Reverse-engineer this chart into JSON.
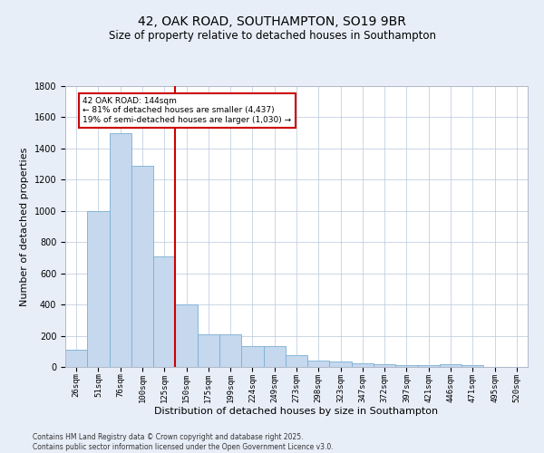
{
  "title_line1": "42, OAK ROAD, SOUTHAMPTON, SO19 9BR",
  "title_line2": "Size of property relative to detached houses in Southampton",
  "xlabel": "Distribution of detached houses by size in Southampton",
  "ylabel": "Number of detached properties",
  "categories": [
    "26sqm",
    "51sqm",
    "76sqm",
    "100sqm",
    "125sqm",
    "150sqm",
    "175sqm",
    "199sqm",
    "224sqm",
    "249sqm",
    "273sqm",
    "298sqm",
    "323sqm",
    "347sqm",
    "372sqm",
    "397sqm",
    "421sqm",
    "446sqm",
    "471sqm",
    "495sqm",
    "520sqm"
  ],
  "values": [
    110,
    1000,
    1500,
    1290,
    710,
    400,
    210,
    210,
    135,
    135,
    75,
    40,
    35,
    25,
    15,
    10,
    10,
    15,
    10,
    0,
    0
  ],
  "bar_color": "#c5d8ee",
  "bar_edge_color": "#7aafd4",
  "vline_x": 4.5,
  "vline_color": "#cc0000",
  "annotation_text": "42 OAK ROAD: 144sqm\n← 81% of detached houses are smaller (4,437)\n19% of semi-detached houses are larger (1,030) →",
  "annotation_box_color": "#cc0000",
  "ylim": [
    0,
    1800
  ],
  "yticks": [
    0,
    200,
    400,
    600,
    800,
    1000,
    1200,
    1400,
    1600,
    1800
  ],
  "bg_color": "#e8eef8",
  "plot_bg_color": "#ffffff",
  "footer_line1": "Contains HM Land Registry data © Crown copyright and database right 2025.",
  "footer_line2": "Contains public sector information licensed under the Open Government Licence v3.0.",
  "title_fontsize": 10,
  "subtitle_fontsize": 8.5,
  "tick_fontsize": 6.5,
  "label_fontsize": 8,
  "footer_fontsize": 5.5
}
